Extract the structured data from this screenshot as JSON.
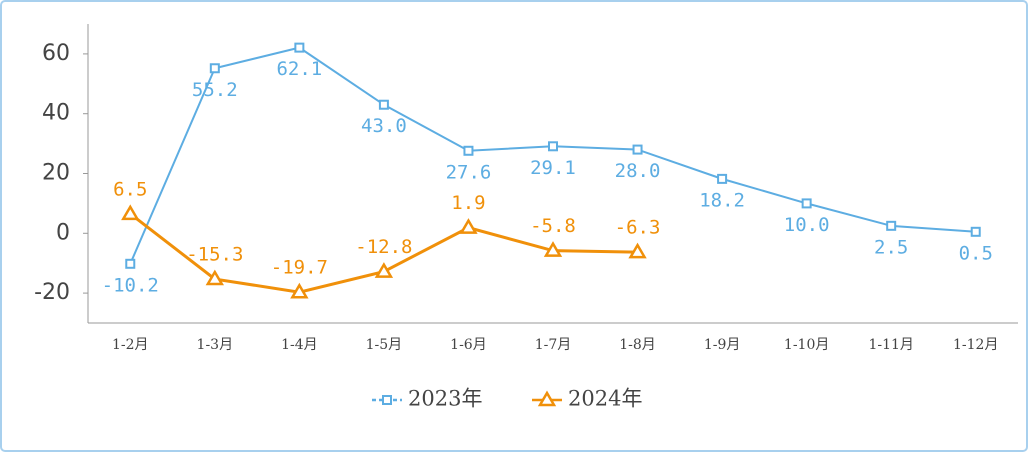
{
  "chart_data": {
    "type": "line",
    "categories": [
      "1-2月",
      "1-3月",
      "1-4月",
      "1-5月",
      "1-6月",
      "1-7月",
      "1-8月",
      "1-9月",
      "1-10月",
      "1-11月",
      "1-12月"
    ],
    "series": [
      {
        "name": "2023年",
        "color": "#5dade2",
        "marker": "square",
        "values": [
          -10.2,
          55.2,
          62.1,
          43.0,
          27.6,
          29.1,
          28.0,
          18.2,
          10.0,
          2.5,
          0.5
        ],
        "value_labels": [
          "-10.2",
          "55.2",
          "62.1",
          "43.0",
          "27.6",
          "29.1",
          "28.0",
          "18.2",
          "10.0",
          "2.5",
          "0.5"
        ]
      },
      {
        "name": "2024年",
        "color": "#f0900a",
        "marker": "triangle",
        "values": [
          6.5,
          -15.3,
          -19.7,
          -12.8,
          1.9,
          -5.8,
          -6.3,
          null,
          null,
          null,
          null
        ],
        "value_labels": [
          "6.5",
          "-15.3",
          "-19.7",
          "-12.8",
          "1.9",
          "-5.8",
          "-6.3",
          null,
          null,
          null,
          null
        ]
      }
    ],
    "ylim": [
      -30,
      70
    ],
    "yticks": [
      60,
      40,
      20,
      0,
      -20
    ],
    "grid": false,
    "legend": "bottom"
  }
}
